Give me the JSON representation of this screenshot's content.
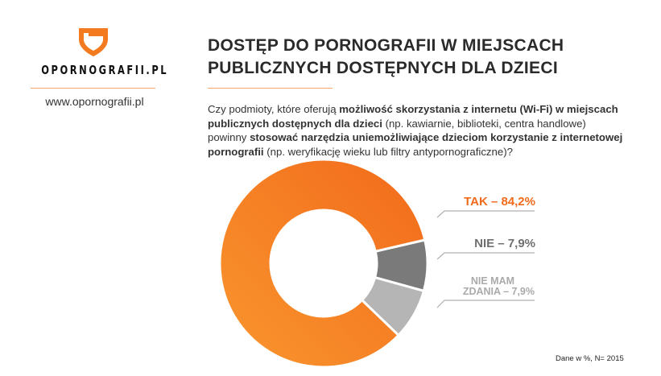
{
  "brand": {
    "name": "OPORNOGRAFII.PL",
    "url": "www.opornografii.pl",
    "accent": "#f47a20"
  },
  "title": {
    "line1": "DOSTĘP DO PORNOGRAFII W MIEJSCACH",
    "line2": "PUBLICZNYCH DOSTĘPNYCH DLA DZIECI"
  },
  "question": {
    "p1": "Czy podmioty, które oferują ",
    "b1": "możliwość skorzystania z internetu (Wi-Fi) w miejscach publicznych dostępnych dla dzieci",
    "p2": " (np. kawiarnie, biblioteki, centra handlowe) powinny ",
    "b2": "stosować narzędzia uniemożliwiające dzieciom korzystanie z internetowej pornografii",
    "p3": " (np. weryfikację wieku lub filtry antypornograficzne)?"
  },
  "chart_data": {
    "type": "pie",
    "donut": true,
    "slices": [
      {
        "label": "NIE",
        "value": 7.9,
        "display": "NIE – 7,9%",
        "color": "#7a7a7a"
      },
      {
        "label": "NIE MAM ZDANIA",
        "value": 7.9,
        "line1": "NIE MAM",
        "line2": "ZDANIA – 7,9%",
        "color": "#b5b5b5"
      },
      {
        "label": "TAK",
        "value": 84.2,
        "display": "TAK – 84,2%",
        "color": "#f47a20"
      }
    ],
    "note": "Dane w %, N= 2015"
  }
}
